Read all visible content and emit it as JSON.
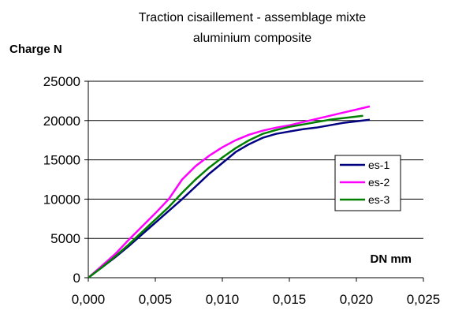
{
  "chart_data": {
    "type": "line",
    "title": "Traction cisaillement - assemblage mixte aluminium composite",
    "title_lines": [
      "Traction cisaillement - assemblage mixte",
      "aluminium composite"
    ],
    "ylabel": "Charge N",
    "xlabel": "DN mm",
    "xlim": [
      0,
      0.025
    ],
    "ylim": [
      0,
      25000
    ],
    "x_ticks": [
      0,
      0.005,
      0.01,
      0.015,
      0.02,
      0.025
    ],
    "x_tick_labels": [
      "0,000",
      "0,005",
      "0,010",
      "0,015",
      "0,020",
      "0,025"
    ],
    "y_ticks": [
      0,
      5000,
      10000,
      15000,
      20000,
      25000
    ],
    "y_tick_labels": [
      "0",
      "5000",
      "10000",
      "15000",
      "20000",
      "25000"
    ],
    "grid": "horizontal",
    "legend_position": "right",
    "series": [
      {
        "name": "es-1",
        "color": "#000080",
        "x": [
          0,
          0.001,
          0.002,
          0.003,
          0.004,
          0.005,
          0.006,
          0.007,
          0.008,
          0.009,
          0.01,
          0.011,
          0.012,
          0.013,
          0.014,
          0.015,
          0.016,
          0.017,
          0.018,
          0.019,
          0.02,
          0.021
        ],
        "y": [
          0,
          1300,
          2600,
          4000,
          5500,
          7000,
          8500,
          10000,
          11600,
          13200,
          14600,
          16000,
          17000,
          17800,
          18300,
          18600,
          18900,
          19100,
          19400,
          19700,
          19900,
          20100
        ]
      },
      {
        "name": "es-2",
        "color": "#ff00ff",
        "x": [
          0,
          0.001,
          0.002,
          0.003,
          0.004,
          0.005,
          0.006,
          0.007,
          0.008,
          0.009,
          0.01,
          0.011,
          0.012,
          0.013,
          0.014,
          0.015,
          0.016,
          0.017,
          0.018,
          0.019,
          0.02,
          0.021
        ],
        "y": [
          0,
          1500,
          3000,
          4800,
          6500,
          8200,
          10000,
          12500,
          14200,
          15500,
          16600,
          17500,
          18200,
          18700,
          19100,
          19400,
          19800,
          20200,
          20600,
          21000,
          21400,
          21800
        ]
      },
      {
        "name": "es-3",
        "color": "#008000",
        "x": [
          0,
          0.001,
          0.002,
          0.003,
          0.004,
          0.005,
          0.006,
          0.007,
          0.008,
          0.009,
          0.01,
          0.011,
          0.012,
          0.013,
          0.014,
          0.015,
          0.016,
          0.017,
          0.018,
          0.019,
          0.02,
          0.0205
        ],
        "y": [
          0,
          1300,
          2700,
          4200,
          5800,
          7400,
          9000,
          10800,
          12500,
          14000,
          15300,
          16500,
          17500,
          18300,
          18800,
          19200,
          19500,
          19800,
          20100,
          20300,
          20500,
          20600
        ]
      }
    ]
  }
}
